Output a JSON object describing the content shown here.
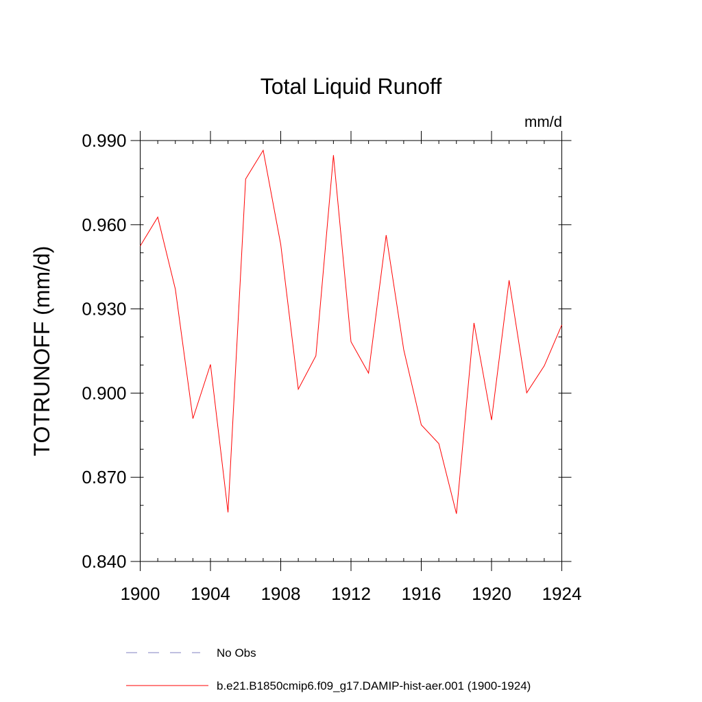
{
  "chart_data": {
    "type": "line",
    "title": "Total Liquid Runoff",
    "units_label": "mm/d",
    "ylabel": "TOTRUNOFF  (mm/d)",
    "xlabel": "",
    "xlim": [
      1900,
      1924
    ],
    "ylim": [
      0.84,
      0.99
    ],
    "x_ticks": [
      1900,
      1904,
      1908,
      1912,
      1916,
      1920,
      1924
    ],
    "x_tick_labels": [
      "1900",
      "1904",
      "1908",
      "1912",
      "1916",
      "1920",
      "1924"
    ],
    "y_ticks": [
      0.84,
      0.87,
      0.9,
      0.93,
      0.96,
      0.99
    ],
    "y_tick_labels": [
      "0.840",
      "0.870",
      "0.900",
      "0.930",
      "0.960",
      "0.990"
    ],
    "x_minor_step": 1,
    "y_minor_step": 0.01,
    "grid": false,
    "legend_position": "bottom",
    "legend": [
      {
        "label": "No Obs",
        "color": "#8080c0",
        "style": "dashed"
      },
      {
        "label": "b.e21.B1850cmip6.f09_g17.DAMIP-hist-aer.001 (1900-1924)",
        "color": "#ff0000",
        "style": "solid"
      }
    ],
    "series": [
      {
        "name": "b.e21.B1850cmip6.f09_g17.DAMIP-hist-aer.001 (1900-1924)",
        "color": "#ff0000",
        "x": [
          1900,
          1901,
          1902,
          1903,
          1904,
          1905,
          1906,
          1907,
          1908,
          1909,
          1910,
          1911,
          1912,
          1913,
          1914,
          1915,
          1916,
          1917,
          1918,
          1919,
          1920,
          1921,
          1922,
          1923,
          1924
        ],
        "values": [
          0.9524,
          0.9627,
          0.937,
          0.8909,
          0.9102,
          0.8575,
          0.9763,
          0.9865,
          0.953,
          0.9014,
          0.9133,
          0.9848,
          0.9183,
          0.9071,
          0.9563,
          0.9155,
          0.8887,
          0.882,
          0.857,
          0.925,
          0.8904,
          0.9402,
          0.9001,
          0.9097,
          0.9243
        ]
      }
    ]
  }
}
